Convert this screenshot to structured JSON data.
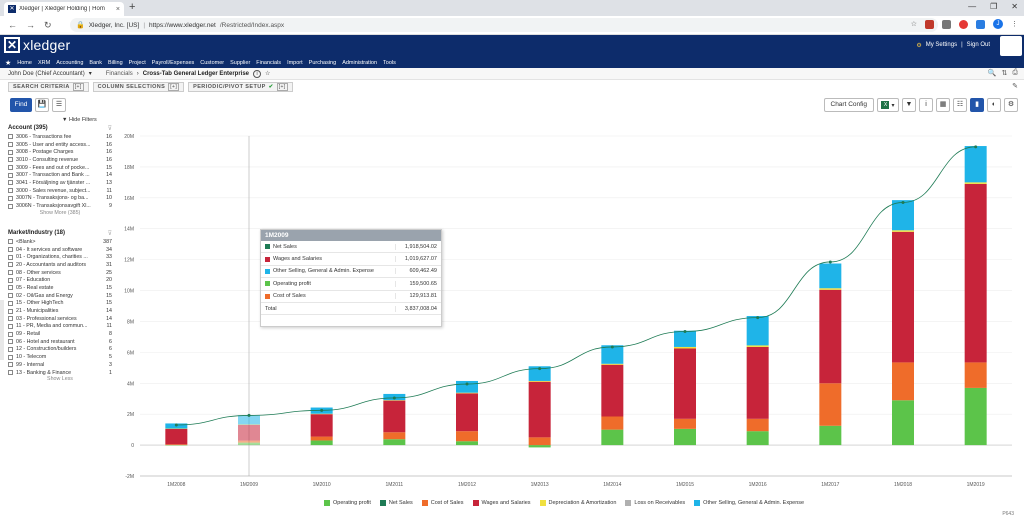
{
  "browser": {
    "tab_title": "Xledger | Xledger Holding | Hom",
    "site_label": "Xledger, Inc. [US]",
    "url_host": "https://www.xledger.net",
    "url_path": "/Restricted/Index.aspx"
  },
  "app": {
    "logo": "xledger",
    "my_settings": "My Settings",
    "sign_out": "Sign Out",
    "menu": [
      "Home",
      "XRM",
      "Accounting",
      "Bank",
      "Billing",
      "Project",
      "Payroll/Expenses",
      "Customer",
      "Supplier",
      "Financials",
      "Import",
      "Purchasing",
      "Administration",
      "Tools"
    ]
  },
  "breadcrumb": {
    "user": "John Doe (Chief Accountant)",
    "section": "Financials",
    "current": "Cross-Tab General Ledger Enterprise"
  },
  "sections": {
    "search": "SEARCH CRITERIA",
    "columns": "COLUMN SELECTIONS",
    "periodic": "PERIODIC/PIVOT SETUP",
    "count_badge": "[+]"
  },
  "actions": {
    "find": "Find",
    "chart_config": "Chart Config"
  },
  "filters": {
    "hide": "Hide Filters",
    "account": {
      "title": "Account (395)",
      "items": [
        {
          "label": "3006 - Transactions fee",
          "count": "16"
        },
        {
          "label": "3005 - User and entity access...",
          "count": "16"
        },
        {
          "label": "3008 - Postage Charges",
          "count": "16"
        },
        {
          "label": "3010 - Consulting revenue",
          "count": "16"
        },
        {
          "label": "3009 - Fees and out of pocke...",
          "count": "15"
        },
        {
          "label": "3007 - Transaction and Bank ...",
          "count": "14"
        },
        {
          "label": "3041 - Försäljning av tjänster ...",
          "count": "13"
        },
        {
          "label": "3000 - Sales revenue, subject...",
          "count": "11"
        },
        {
          "label": "3007N - Transaksjons- og ba...",
          "count": "10"
        },
        {
          "label": "3006N - Transaksjonsavgift Xl...",
          "count": "9"
        }
      ],
      "more": "Show More (385)"
    },
    "market": {
      "title": "Market/Industry (18)",
      "items": [
        {
          "label": "<Blank>",
          "count": "387"
        },
        {
          "label": "04 - It services and software",
          "count": "34"
        },
        {
          "label": "01 - Organizations, charities ...",
          "count": "33"
        },
        {
          "label": "20 - Accountants and auditors",
          "count": "31"
        },
        {
          "label": "08 - Other services",
          "count": "25"
        },
        {
          "label": "07 - Education",
          "count": "20"
        },
        {
          "label": "05 - Real estate",
          "count": "15"
        },
        {
          "label": "02 - Oil/Gas and Energy",
          "count": "15"
        },
        {
          "label": "15 - Other HighTech",
          "count": "15"
        },
        {
          "label": "21 - Municipalities",
          "count": "14"
        },
        {
          "label": "03 - Professional services",
          "count": "14"
        },
        {
          "label": "11 - PR, Media and commun...",
          "count": "11"
        },
        {
          "label": "09 - Retail",
          "count": "8"
        },
        {
          "label": "06 - Hotel and restaurant",
          "count": "6"
        },
        {
          "label": "12 - Construction/builders",
          "count": "6"
        },
        {
          "label": "10 - Telecom",
          "count": "5"
        },
        {
          "label": "99 - Internal",
          "count": "3"
        },
        {
          "label": "13 - Banking & Finance",
          "count": "1"
        }
      ],
      "less": "Show Less"
    }
  },
  "tooltip": {
    "title": "1M2009",
    "rows": [
      {
        "name": "Net Sales",
        "value": "1,918,504.02",
        "color": "#1e7b55"
      },
      {
        "name": "Wages and Salaries",
        "value": "1,019,627.07",
        "color": "#c7243a"
      },
      {
        "name": "Other Selling, General & Admin. Expense",
        "value": "609,462.49",
        "color": "#1fb4e8"
      },
      {
        "name": "Operating profit",
        "value": "159,500.65",
        "color": "#5cc44a"
      },
      {
        "name": "Cost of Sales",
        "value": "129,913.81",
        "color": "#ef6c2a"
      }
    ],
    "total_label": "Total",
    "total_value": "3,837,008.04"
  },
  "legend": [
    {
      "name": "Operating profit",
      "color": "#5cc44a"
    },
    {
      "name": "Net Sales",
      "color": "#1e7b55"
    },
    {
      "name": "Cost of Sales",
      "color": "#ef6c2a"
    },
    {
      "name": "Wages and Salaries",
      "color": "#c7243a"
    },
    {
      "name": "Depreciation & Amortization",
      "color": "#f0e040"
    },
    {
      "name": "Loss on Receivables",
      "color": "#b0b0b0"
    },
    {
      "name": "Other Selling, General & Admin. Expense",
      "color": "#1fb4e8"
    }
  ],
  "page_id": "P643",
  "chart_data": {
    "type": "bar",
    "categories": [
      "1M2008",
      "1M2009",
      "1M2010",
      "1M2011",
      "1M2012",
      "1M2013",
      "1M2014",
      "1M2015",
      "1M2016",
      "1M2017",
      "1M2018",
      "1M2019"
    ],
    "y_ticks": [
      "-2M",
      "0",
      "2M",
      "4M",
      "6M",
      "8M",
      "10M",
      "12M",
      "14M",
      "16M",
      "18M",
      "20M"
    ],
    "ylim": [
      -2,
      20
    ],
    "series": [
      {
        "name": "Operating profit",
        "stack": "pos",
        "values": [
          0,
          0.16,
          0.3,
          0.38,
          0.25,
          -0.15,
          1.0,
          1.05,
          0.9,
          1.25,
          2.9,
          3.7
        ]
      },
      {
        "name": "Cost of Sales",
        "stack": "pos",
        "values": [
          0.05,
          0.13,
          0.25,
          0.45,
          0.65,
          0.5,
          0.85,
          0.65,
          0.8,
          2.75,
          2.45,
          1.65
        ]
      },
      {
        "name": "Wages and Salaries",
        "stack": "pos",
        "values": [
          1.0,
          1.02,
          1.45,
          2.05,
          2.45,
          3.6,
          3.35,
          4.55,
          4.65,
          6.05,
          8.45,
          11.55
        ]
      },
      {
        "name": "Depreciation & Amortization",
        "stack": "pos",
        "values": [
          0.02,
          0.02,
          0.03,
          0.03,
          0.04,
          0.05,
          0.06,
          0.1,
          0.1,
          0.1,
          0.1,
          0.1
        ]
      },
      {
        "name": "Other Selling, General & Admin. Expense",
        "stack": "pos",
        "values": [
          0.33,
          0.61,
          0.4,
          0.4,
          0.76,
          0.95,
          1.2,
          1.05,
          1.9,
          1.6,
          1.95,
          2.35
        ]
      },
      {
        "name": "Net Sales",
        "type": "line",
        "values": [
          1.3,
          1.92,
          2.25,
          3.05,
          3.95,
          4.95,
          6.35,
          7.35,
          8.25,
          11.85,
          15.7,
          19.3
        ]
      }
    ]
  }
}
